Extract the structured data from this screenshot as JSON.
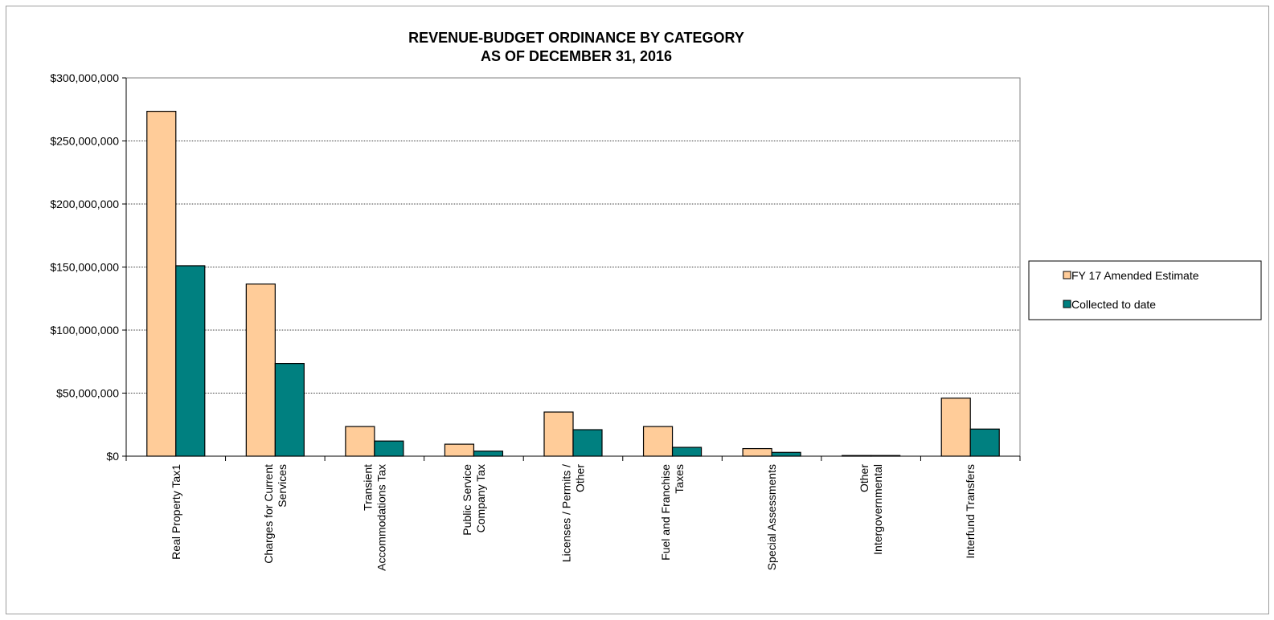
{
  "chart_data": {
    "type": "bar",
    "title": [
      "REVENUE-BUDGET ORDINANCE BY CATEGORY",
      "AS OF DECEMBER 31, 2016"
    ],
    "categories": [
      [
        "Real Property Tax1"
      ],
      [
        "Charges for Current",
        "Services"
      ],
      [
        "Transient",
        "Accommodations Tax"
      ],
      [
        "Public Service",
        "Company Tax"
      ],
      [
        "Licenses / Permits /",
        "Other"
      ],
      [
        "Fuel and Franchise",
        "Taxes"
      ],
      [
        "Special Assessments"
      ],
      [
        "Other",
        "Intergovernmental"
      ],
      [
        "Interfund Transfers"
      ]
    ],
    "series": [
      {
        "name": "FY 17 Amended Estimate",
        "color": "#ffcc99",
        "values": [
          273500000,
          136500000,
          23500000,
          9500000,
          35000000,
          23500000,
          6000000,
          300000,
          46000000
        ]
      },
      {
        "name": "Collected to date",
        "color": "#008080",
        "values": [
          151000000,
          73500000,
          12000000,
          4000000,
          21000000,
          7000000,
          3000000,
          200000,
          21500000
        ]
      }
    ],
    "ylim": [
      0,
      300000000
    ],
    "yticks": [
      0,
      50000000,
      100000000,
      150000000,
      200000000,
      250000000,
      300000000
    ],
    "ytick_labels": [
      "$0",
      "$50,000,000",
      "$100,000,000",
      "$150,000,000",
      "$200,000,000",
      "$250,000,000",
      "$300,000,000"
    ],
    "grid": true,
    "legend_position": "right"
  }
}
